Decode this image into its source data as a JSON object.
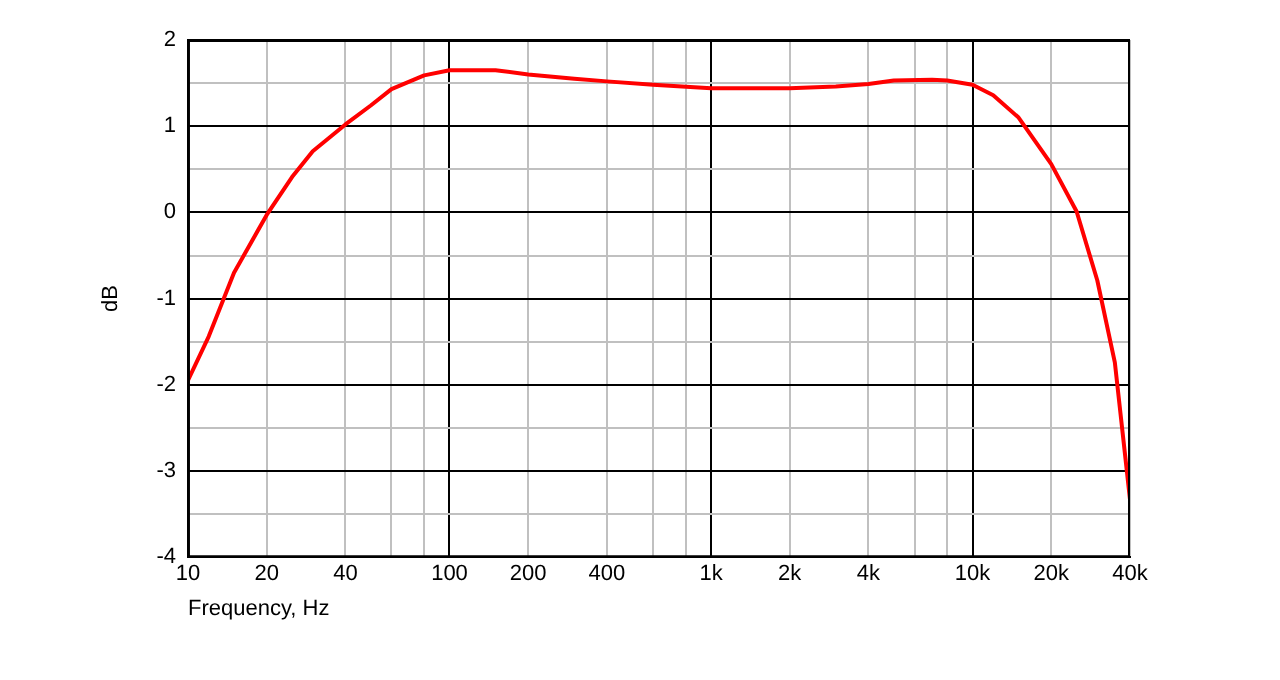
{
  "chart_data": {
    "type": "line",
    "xlabel": "Frequency, Hz",
    "ylabel": "dB",
    "log": "x",
    "grid": true,
    "legend": false,
    "marker": "none",
    "line_style": "solid",
    "xlim": [
      10,
      40000
    ],
    "ylim": [
      -4,
      2
    ],
    "xticks": [
      10,
      20,
      40,
      {
        "value": 60,
        "label": null
      },
      {
        "value": 80,
        "label": null
      },
      100,
      200,
      400,
      {
        "value": 600,
        "label": null
      },
      {
        "value": 800,
        "label": null
      },
      {
        "value": 1000,
        "label": "1k"
      },
      {
        "value": 2000,
        "label": "2k"
      },
      {
        "value": 4000,
        "label": "4k"
      },
      {
        "value": 6000,
        "label": null
      },
      {
        "value": 8000,
        "label": null
      },
      {
        "value": 10000,
        "label": "10k"
      },
      {
        "value": 20000,
        "label": "20k"
      },
      {
        "value": 40000,
        "label": "40k"
      }
    ],
    "yticks": [
      -4,
      {
        "value": -3.5,
        "label": null
      },
      -3,
      {
        "value": -2.5,
        "label": null
      },
      -2,
      {
        "value": -1.5,
        "label": null
      },
      -1,
      {
        "value": -0.5,
        "label": null
      },
      0,
      {
        "value": 0.5,
        "label": null
      },
      1,
      {
        "value": 1.5,
        "label": null
      },
      2
    ],
    "x": [
      10,
      12,
      15,
      20,
      25,
      30,
      40,
      50,
      60,
      80,
      100,
      150,
      200,
      300,
      400,
      600,
      1000,
      2000,
      3000,
      4000,
      5000,
      7000,
      8000,
      10000,
      12000,
      15000,
      20000,
      25000,
      30000,
      35000,
      40000
    ],
    "series": [
      {
        "color": "#ff0000",
        "values": [
          -1.95,
          -1.44,
          -0.7,
          -0.03,
          0.41,
          0.71,
          1.02,
          1.24,
          1.43,
          1.59,
          1.65,
          1.65,
          1.6,
          1.55,
          1.52,
          1.48,
          1.44,
          1.44,
          1.46,
          1.49,
          1.53,
          1.54,
          1.53,
          1.48,
          1.36,
          1.1,
          0.56,
          0.01,
          -0.79,
          -1.74,
          -3.33
        ]
      }
    ]
  }
}
